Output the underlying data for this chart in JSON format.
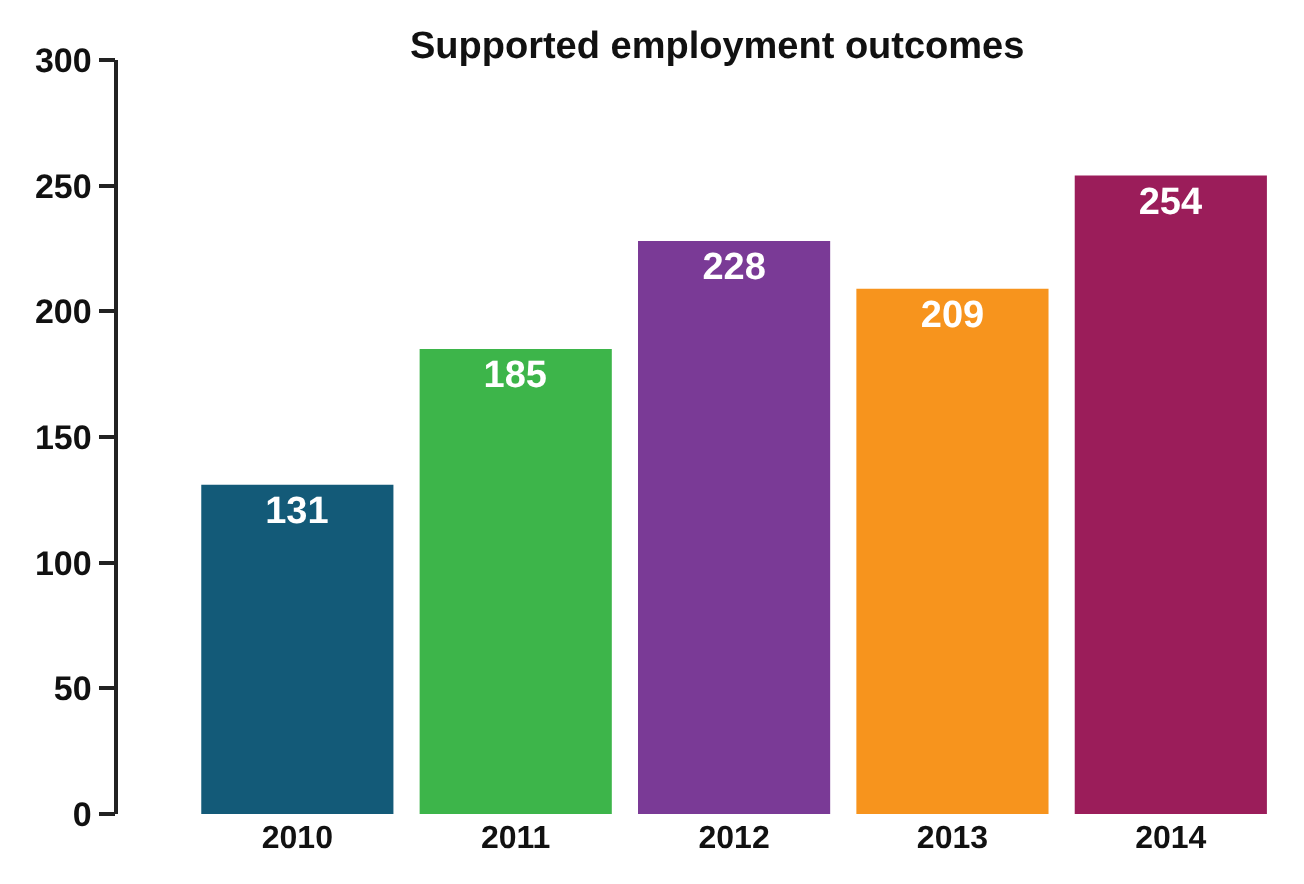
{
  "chart_data": {
    "type": "bar",
    "title": "Supported employment outcomes",
    "categories": [
      "2010",
      "2011",
      "2012",
      "2013",
      "2014"
    ],
    "values": [
      131,
      185,
      228,
      209,
      254
    ],
    "colors": [
      "#135a78",
      "#3db54a",
      "#7a3a96",
      "#f7941d",
      "#9b1d5a"
    ],
    "ylim": [
      0,
      300
    ],
    "yticks": [
      0,
      50,
      100,
      150,
      200,
      250,
      300
    ],
    "data_labels": true,
    "grid": false
  }
}
